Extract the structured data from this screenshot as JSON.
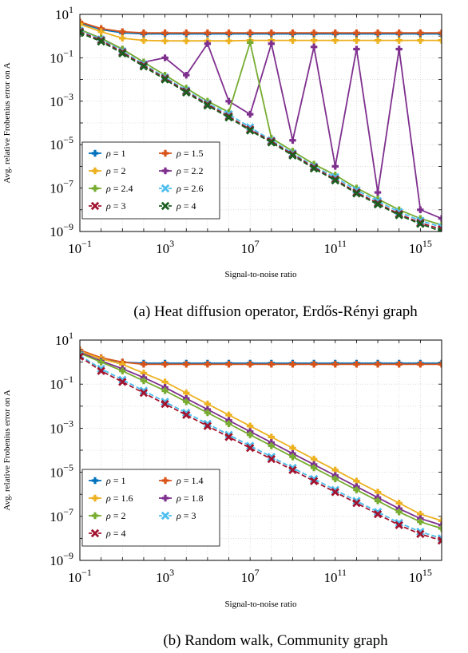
{
  "chart_data": [
    {
      "type": "line",
      "caption": "(a) Heat diffusion operator, Erdős-Rényi graph",
      "xlabel": "Signal-to-noise ratio",
      "ylabel": "Avg. relative Frobenius error on A",
      "xscale": "log",
      "yscale": "log",
      "xlim": [
        0.1,
        1e+16
      ],
      "ylim": [
        1e-09,
        10
      ],
      "xticks": [
        {
          "base": "10",
          "exp": "−1"
        },
        {
          "base": "10",
          "exp": "3"
        },
        {
          "base": "10",
          "exp": "7"
        },
        {
          "base": "10",
          "exp": "11"
        },
        {
          "base": "10",
          "exp": "15"
        }
      ],
      "yticks": [
        {
          "base": "10",
          "exp": "1"
        },
        {
          "base": "10",
          "exp": "−1"
        },
        {
          "base": "10",
          "exp": "−3"
        },
        {
          "base": "10",
          "exp": "−5"
        },
        {
          "base": "10",
          "exp": "−7"
        },
        {
          "base": "10",
          "exp": "−9"
        }
      ],
      "legend_position": "lower-left",
      "x_log10": [
        -1,
        0,
        1,
        2,
        3,
        4,
        5,
        6,
        7,
        8,
        9,
        10,
        11,
        12,
        13,
        14,
        15,
        16
      ],
      "series": [
        {
          "name": "ρ = 1",
          "color": "#0072bd",
          "dashed": false,
          "y_log10": [
            0.6,
            0.3,
            0.15,
            0.1,
            0.1,
            0.1,
            0.1,
            0.1,
            0.1,
            0.1,
            0.1,
            0.1,
            0.1,
            0.1,
            0.1,
            0.1,
            0.1,
            0.1
          ]
        },
        {
          "name": "ρ = 1.5",
          "color": "#d95319",
          "dashed": false,
          "y_log10": [
            0.65,
            0.35,
            0.2,
            0.15,
            0.15,
            0.15,
            0.15,
            0.15,
            0.15,
            0.15,
            0.15,
            0.15,
            0.15,
            0.15,
            0.15,
            0.15,
            0.15,
            0.15
          ]
        },
        {
          "name": "ρ = 2",
          "color": "#edb120",
          "dashed": false,
          "y_log10": [
            0.55,
            0.2,
            -0.1,
            -0.2,
            -0.22,
            -0.22,
            -0.22,
            -0.22,
            -0.2,
            -0.2,
            -0.2,
            -0.2,
            -0.2,
            -0.2,
            -0.2,
            -0.2,
            -0.2,
            -0.2
          ]
        },
        {
          "name": "ρ = 2.2",
          "color": "#7e2f8e",
          "dashed": false,
          "y_log10": [
            0.3,
            -0.1,
            -0.6,
            -1.2,
            -1.0,
            -1.8,
            -0.35,
            -3.0,
            -3.6,
            -0.35,
            -4.8,
            -0.5,
            -6.0,
            -0.6,
            -7.2,
            -0.6,
            -8.0,
            -8.4
          ]
        },
        {
          "name": "ρ = 2.4",
          "color": "#77ac30",
          "dashed": false,
          "y_log10": [
            0.3,
            -0.1,
            -0.6,
            -1.2,
            -1.8,
            -2.4,
            -3.0,
            -3.5,
            -0.3,
            -4.7,
            -5.3,
            -5.9,
            -6.4,
            -7.0,
            -7.5,
            -8.0,
            -8.4,
            -8.7
          ]
        },
        {
          "name": "ρ = 2.6",
          "color": "#4dbeee",
          "dashed": true,
          "y_log10": [
            0.25,
            -0.15,
            -0.7,
            -1.3,
            -1.9,
            -2.5,
            -3.1,
            -3.6,
            -4.2,
            -4.8,
            -5.4,
            -6.0,
            -6.5,
            -7.1,
            -7.6,
            -8.1,
            -8.5,
            -8.8
          ]
        },
        {
          "name": "ρ = 3",
          "color": "#a2142f",
          "dashed": true,
          "y_log10": [
            0.2,
            -0.2,
            -0.75,
            -1.35,
            -1.95,
            -2.55,
            -3.15,
            -3.7,
            -4.3,
            -4.85,
            -5.45,
            -6.05,
            -6.6,
            -7.2,
            -7.7,
            -8.2,
            -8.6,
            -8.9
          ]
        },
        {
          "name": "ρ = 4",
          "color": "#1b5e20",
          "dashed": true,
          "y_log10": [
            0.15,
            -0.25,
            -0.8,
            -1.4,
            -2.0,
            -2.6,
            -3.2,
            -3.75,
            -4.35,
            -4.9,
            -5.5,
            -6.1,
            -6.65,
            -7.25,
            -7.75,
            -8.25,
            -8.65,
            -9.0
          ]
        }
      ]
    },
    {
      "type": "line",
      "caption": "(b) Random walk, Community graph",
      "xlabel": "Signal-to-noise ratio",
      "ylabel": "Avg. relative Frobenius error on A",
      "xscale": "log",
      "yscale": "log",
      "xlim": [
        0.1,
        1e+16
      ],
      "ylim": [
        1e-09,
        10
      ],
      "xticks": [
        {
          "base": "10",
          "exp": "−1"
        },
        {
          "base": "10",
          "exp": "3"
        },
        {
          "base": "10",
          "exp": "7"
        },
        {
          "base": "10",
          "exp": "11"
        },
        {
          "base": "10",
          "exp": "15"
        }
      ],
      "yticks": [
        {
          "base": "10",
          "exp": "1"
        },
        {
          "base": "10",
          "exp": "−1"
        },
        {
          "base": "10",
          "exp": "−3"
        },
        {
          "base": "10",
          "exp": "−5"
        },
        {
          "base": "10",
          "exp": "−7"
        },
        {
          "base": "10",
          "exp": "−9"
        }
      ],
      "legend_position": "lower-left",
      "x_log10": [
        -1,
        0,
        1,
        2,
        3,
        4,
        5,
        6,
        7,
        8,
        9,
        10,
        11,
        12,
        13,
        14,
        15,
        16
      ],
      "series": [
        {
          "name": "ρ = 1",
          "color": "#0072bd",
          "dashed": false,
          "y_log10": [
            0.5,
            0.15,
            0.0,
            -0.05,
            -0.05,
            -0.05,
            -0.05,
            -0.05,
            -0.05,
            -0.05,
            -0.05,
            -0.05,
            -0.05,
            -0.05,
            -0.05,
            -0.05,
            -0.05,
            -0.05
          ]
        },
        {
          "name": "ρ = 1.4",
          "color": "#d95319",
          "dashed": false,
          "y_log10": [
            0.55,
            0.2,
            0.0,
            -0.1,
            -0.1,
            -0.1,
            -0.1,
            -0.1,
            -0.1,
            -0.1,
            -0.1,
            -0.1,
            -0.1,
            -0.1,
            -0.1,
            -0.1,
            -0.1,
            -0.1
          ]
        },
        {
          "name": "ρ = 1.6",
          "color": "#edb120",
          "dashed": false,
          "y_log10": [
            0.5,
            0.15,
            -0.1,
            -0.5,
            -0.9,
            -1.4,
            -1.9,
            -2.4,
            -2.9,
            -3.4,
            -3.9,
            -4.4,
            -4.9,
            -5.4,
            -5.9,
            -6.4,
            -6.9,
            -7.2
          ]
        },
        {
          "name": "ρ = 1.8",
          "color": "#7e2f8e",
          "dashed": false,
          "y_log10": [
            0.45,
            0.05,
            -0.3,
            -0.7,
            -1.15,
            -1.65,
            -2.15,
            -2.65,
            -3.15,
            -3.65,
            -4.15,
            -4.65,
            -5.15,
            -5.65,
            -6.15,
            -6.65,
            -7.1,
            -7.4
          ]
        },
        {
          "name": "ρ = 2",
          "color": "#77ac30",
          "dashed": false,
          "y_log10": [
            0.4,
            0.0,
            -0.4,
            -0.85,
            -1.3,
            -1.8,
            -2.3,
            -2.8,
            -3.3,
            -3.8,
            -4.3,
            -4.8,
            -5.3,
            -5.8,
            -6.3,
            -6.8,
            -7.25,
            -7.55
          ]
        },
        {
          "name": "ρ = 3",
          "color": "#4dbeee",
          "dashed": true,
          "y_log10": [
            0.3,
            -0.3,
            -0.8,
            -1.3,
            -1.8,
            -2.3,
            -2.8,
            -3.3,
            -3.8,
            -4.3,
            -4.8,
            -5.3,
            -5.8,
            -6.3,
            -6.8,
            -7.3,
            -7.7,
            -8.0
          ]
        },
        {
          "name": "ρ = 4",
          "color": "#a2142f",
          "dashed": true,
          "y_log10": [
            0.25,
            -0.4,
            -0.9,
            -1.4,
            -1.9,
            -2.4,
            -2.9,
            -3.4,
            -3.9,
            -4.4,
            -4.9,
            -5.4,
            -5.9,
            -6.4,
            -6.9,
            -7.4,
            -7.8,
            -8.1
          ]
        }
      ]
    }
  ]
}
